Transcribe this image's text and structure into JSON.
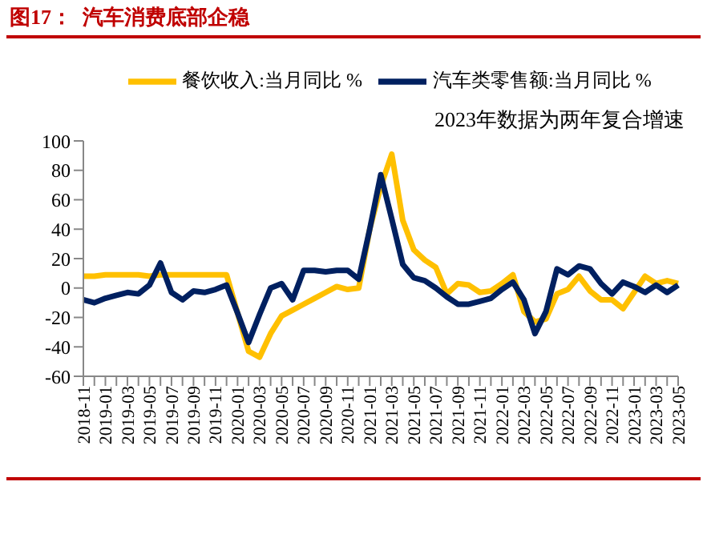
{
  "chart_data": {
    "type": "line",
    "title": "图17：  汽车消费底部企稳",
    "categories": [
      "2018-11",
      null,
      "2019-01",
      null,
      "2019-03",
      null,
      "2019-05",
      null,
      "2019-07",
      null,
      "2019-09",
      null,
      "2019-11",
      null,
      "2020-01",
      null,
      "2020-03",
      null,
      "2020-05",
      null,
      "2020-07",
      null,
      "2020-09",
      null,
      "2020-11",
      null,
      "2021-01",
      null,
      "2021-03",
      null,
      "2021-05",
      null,
      "2021-07",
      null,
      "2021-09",
      null,
      "2021-11",
      null,
      "2022-01",
      null,
      "2022-03",
      null,
      "2022-05",
      null,
      "2022-07",
      null,
      "2022-09",
      null,
      "2022-11",
      null,
      "2023-01",
      null,
      "2023-03",
      null,
      "2023-05"
    ],
    "series": [
      {
        "name": "餐饮收入:当月同比 %",
        "color": "#ffc000",
        "values": [
          8,
          8,
          9,
          9,
          9,
          9,
          8,
          9,
          9,
          9,
          9,
          9,
          9,
          9,
          -17,
          -43,
          -47,
          -31,
          -19,
          -15,
          -11,
          -7,
          -3,
          1,
          -1,
          0,
          40,
          69,
          91,
          46,
          26,
          19,
          14,
          -4,
          3,
          2,
          -3,
          -2,
          3,
          9,
          -16,
          -23,
          -21,
          -4,
          -1,
          8,
          -2,
          -8,
          -8,
          -14,
          -3,
          8,
          3,
          5,
          3
        ]
      },
      {
        "name": "汽车类零售额:当月同比 %",
        "color": "#002060",
        "values": [
          -8,
          -10,
          -7,
          -5,
          -3,
          -4,
          2,
          17,
          -3,
          -8,
          -2,
          -3,
          -1,
          2,
          -17,
          -37,
          -18,
          0,
          3,
          -8,
          12,
          12,
          11,
          12,
          12,
          6,
          40,
          77,
          47,
          16,
          7,
          5,
          0,
          -6,
          -11,
          -11,
          -9,
          -7,
          -1,
          4,
          -8,
          -31,
          -16,
          13,
          9,
          15,
          13,
          3,
          -4,
          4,
          1,
          -3,
          2,
          -3,
          2
        ]
      }
    ],
    "ylim": [
      -60,
      100
    ],
    "yticks": [
      -60,
      -40,
      -20,
      0,
      20,
      40,
      60,
      80,
      100
    ],
    "legend": "top",
    "marker": "none",
    "line_style": "solid",
    "annotations": [
      "2023年数据为两年复合增速"
    ]
  }
}
